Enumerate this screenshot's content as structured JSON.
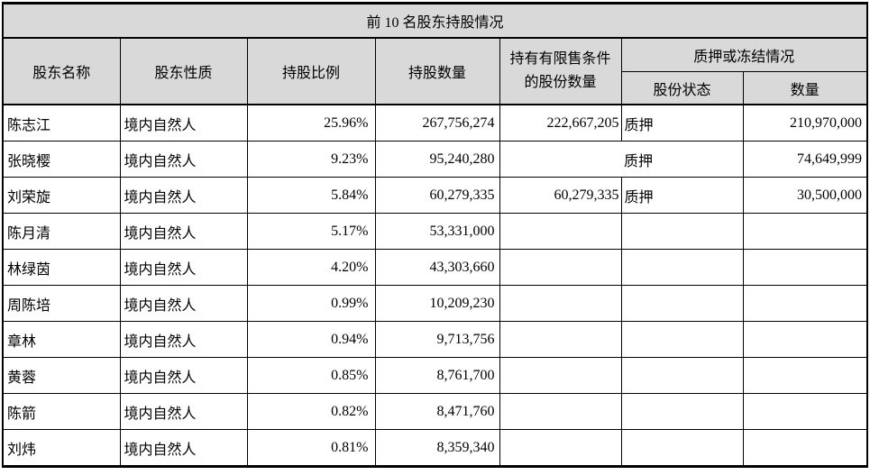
{
  "table": {
    "title": "前 10 名股东持股情况",
    "columns": {
      "name": "股东名称",
      "nature": "股东性质",
      "ratio": "持股比例",
      "shares": "持股数量",
      "restricted": "持有有限售条件的股份数量",
      "pledge_group": "质押或冻结情况",
      "pledge_status": "股份状态",
      "pledge_amount": "数量"
    },
    "rows": [
      {
        "name": "陈志江",
        "nature": "境内自然人",
        "ratio": "25.96%",
        "shares": "267,756,274",
        "restricted": "222,667,205",
        "status": "质押",
        "amount": "210,970,000"
      },
      {
        "name": "张晓樱",
        "nature": "境内自然人",
        "ratio": "9.23%",
        "shares": "95,240,280",
        "restricted": "",
        "status": "质押",
        "amount": "74,649,999",
        "status_left_border_missing": true
      },
      {
        "name": "刘荣旋",
        "nature": "境内自然人",
        "ratio": "5.84%",
        "shares": "60,279,335",
        "restricted": "60,279,335",
        "status": "质押",
        "amount": "30,500,000"
      },
      {
        "name": "陈月清",
        "nature": "境内自然人",
        "ratio": "5.17%",
        "shares": "53,331,000",
        "restricted": "",
        "status": "",
        "amount": ""
      },
      {
        "name": "林绿茵",
        "nature": "境内自然人",
        "ratio": "4.20%",
        "shares": "43,303,660",
        "restricted": "",
        "status": "",
        "amount": ""
      },
      {
        "name": "周陈培",
        "nature": "境内自然人",
        "ratio": "0.99%",
        "shares": "10,209,230",
        "restricted": "",
        "status": "",
        "amount": ""
      },
      {
        "name": "章林",
        "nature": "境内自然人",
        "ratio": "0.94%",
        "shares": "9,713,756",
        "restricted": "",
        "status": "",
        "amount": ""
      },
      {
        "name": "黄蓉",
        "nature": "境内自然人",
        "ratio": "0.85%",
        "shares": "8,761,700",
        "restricted": "",
        "status": "",
        "amount": ""
      },
      {
        "name": "陈箭",
        "nature": "境内自然人",
        "ratio": "0.82%",
        "shares": "8,471,760",
        "restricted": "",
        "status": "",
        "amount": ""
      },
      {
        "name": "刘炜",
        "nature": "境内自然人",
        "ratio": "0.81%",
        "shares": "8,359,340",
        "restricted": "",
        "status": "",
        "amount": ""
      }
    ],
    "colors": {
      "header_bg": "#d9d9d9",
      "border": "#000000",
      "background": "#ffffff"
    }
  }
}
